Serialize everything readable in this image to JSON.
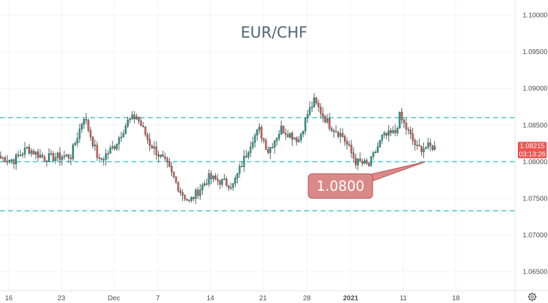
{
  "chart_data": {
    "type": "candlestick",
    "title": "EUR/CHF",
    "ylim": [
      1.0615,
      1.1025
    ],
    "yticks": [
      {
        "value": 1.1,
        "label": "1.10000"
      },
      {
        "value": 1.095,
        "label": "1.09500"
      },
      {
        "value": 1.09,
        "label": "1.09000"
      },
      {
        "value": 1.085,
        "label": "1.08500"
      },
      {
        "value": 1.08,
        "label": "1.08000"
      },
      {
        "value": 1.075,
        "label": "1.07500"
      },
      {
        "value": 1.07,
        "label": "1.07000"
      },
      {
        "value": 1.065,
        "label": "1.06500"
      }
    ],
    "xticks": [
      {
        "index": 4,
        "label": "16",
        "bold": false
      },
      {
        "index": 28,
        "label": "23",
        "bold": false
      },
      {
        "index": 52,
        "label": "Dec",
        "bold": false
      },
      {
        "index": 72,
        "label": "7",
        "bold": false
      },
      {
        "index": 96,
        "label": "14",
        "bold": false
      },
      {
        "index": 120,
        "label": "21",
        "bold": false
      },
      {
        "index": 140,
        "label": "28",
        "bold": false
      },
      {
        "index": 160,
        "label": "2021",
        "bold": true
      },
      {
        "index": 184,
        "label": "11",
        "bold": false
      },
      {
        "index": 208,
        "label": "18",
        "bold": false
      }
    ],
    "support_resistance_levels": [
      1.086,
      1.08,
      1.0733
    ],
    "anchor_points": [
      {
        "i": 0,
        "p": 1.0805
      },
      {
        "i": 6,
        "p": 1.0802
      },
      {
        "i": 12,
        "p": 1.0818
      },
      {
        "i": 20,
        "p": 1.0805
      },
      {
        "i": 32,
        "p": 1.0808
      },
      {
        "i": 38,
        "p": 1.0862
      },
      {
        "i": 45,
        "p": 1.08
      },
      {
        "i": 52,
        "p": 1.0822
      },
      {
        "i": 58,
        "p": 1.0855
      },
      {
        "i": 62,
        "p": 1.0862
      },
      {
        "i": 68,
        "p": 1.0825
      },
      {
        "i": 76,
        "p": 1.0795
      },
      {
        "i": 82,
        "p": 1.076
      },
      {
        "i": 86,
        "p": 1.0745
      },
      {
        "i": 95,
        "p": 1.0778
      },
      {
        "i": 106,
        "p": 1.0768
      },
      {
        "i": 115,
        "p": 1.0832
      },
      {
        "i": 118,
        "p": 1.0843
      },
      {
        "i": 122,
        "p": 1.0815
      },
      {
        "i": 128,
        "p": 1.0845
      },
      {
        "i": 136,
        "p": 1.083
      },
      {
        "i": 140,
        "p": 1.0865
      },
      {
        "i": 143,
        "p": 1.0882
      },
      {
        "i": 150,
        "p": 1.085
      },
      {
        "i": 156,
        "p": 1.0835
      },
      {
        "i": 162,
        "p": 1.08
      },
      {
        "i": 168,
        "p": 1.0795
      },
      {
        "i": 174,
        "p": 1.0833
      },
      {
        "i": 180,
        "p": 1.084
      },
      {
        "i": 182,
        "p": 1.0862
      },
      {
        "i": 186,
        "p": 1.084
      },
      {
        "i": 190,
        "p": 1.0818
      },
      {
        "i": 198,
        "p": 1.0821
      }
    ],
    "last_price": {
      "value": 1.08215,
      "label": "1.08215",
      "countdown": "03:13:26"
    },
    "annotation": {
      "label": "1.0800",
      "target_index": 192,
      "target_value": 1.08
    },
    "colors": {
      "up": "#26a69a",
      "down": "#ef5350",
      "body": "#1e3a2f",
      "level": "#4ec7d6",
      "badge": "#ef5350",
      "callout_fill": "#d98a88",
      "callout_stroke": "#b85050",
      "title": "#4f6478"
    }
  },
  "settings_icon": "gear-icon"
}
